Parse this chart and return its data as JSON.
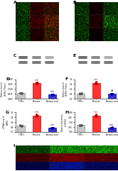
{
  "bg_color": "#ffffff",
  "bar_width": 0.5,
  "panels": {
    "D": {
      "categories": [
        "TDD s",
        "Penzone",
        "Antony zone"
      ],
      "values": [
        1.0,
        2.8,
        0.75
      ],
      "errors": [
        0.08,
        0.12,
        0.07
      ],
      "colors": [
        "#c8c8c8",
        "#ff3333",
        "#3333cc"
      ],
      "edge_colors": [
        "#888888",
        "#cc0000",
        "#0000aa"
      ],
      "ylabel": "Relative Level of\nWDR4 / Protein",
      "sig_labels": [
        "",
        "***",
        "***"
      ],
      "sig_colors": [
        "",
        "#cc0000",
        "#0000aa"
      ],
      "ylim": [
        0,
        3.5
      ]
    },
    "F": {
      "categories": [
        "TDD s",
        "Penzone",
        "Antony zone"
      ],
      "values": [
        0.85,
        2.6,
        0.8
      ],
      "errors": [
        0.09,
        0.14,
        0.08
      ],
      "colors": [
        "#c8c8c8",
        "#ff3333",
        "#3333cc"
      ],
      "edge_colors": [
        "#888888",
        "#cc0000",
        "#0000aa"
      ],
      "ylabel": "Relative Level of\nWDR4 / Protein",
      "sig_labels": [
        "",
        "***",
        "#"
      ],
      "sig_colors": [
        "",
        "#cc0000",
        "#0000aa"
      ],
      "ylim": [
        0,
        3.2
      ]
    },
    "G": {
      "categories": [
        "TDD s",
        "Penzone",
        "Antony zone"
      ],
      "values": [
        1.0,
        2.7,
        0.65
      ],
      "errors": [
        0.09,
        0.11,
        0.07
      ],
      "colors": [
        "#c8c8c8",
        "#ff3333",
        "#3333cc"
      ],
      "edge_colors": [
        "#888888",
        "#cc0000",
        "#0000aa"
      ],
      "ylabel": "mRNA Level of\nWDR4",
      "sig_labels": [
        "",
        "***",
        "***"
      ],
      "sig_colors": [
        "",
        "#cc0000",
        "#0000aa"
      ],
      "ylim": [
        0,
        3.2
      ]
    },
    "H": {
      "categories": [
        "TDD s",
        "Penzone",
        "Antony zone"
      ],
      "values": [
        1.0,
        2.5,
        0.65
      ],
      "errors": [
        0.08,
        0.13,
        0.07
      ],
      "colors": [
        "#c8c8c8",
        "#ff3333",
        "#3333cc"
      ],
      "edge_colors": [
        "#888888",
        "#cc0000",
        "#0000aa"
      ],
      "ylabel": "Relative Expression\nof WDR4",
      "sig_labels": [
        "",
        "***",
        "***"
      ],
      "sig_colors": [
        "",
        "#cc0000",
        "#0000aa"
      ],
      "ylim": [
        0,
        3.0
      ]
    }
  },
  "panel_A": {
    "grid_colors": [
      [
        "#1a5c0a",
        "#550000",
        "#5c3000"
      ],
      [
        "#1a5c0a",
        "#660000",
        "#7a4200"
      ],
      [
        "#1a5c0a",
        "#440000",
        "#664400"
      ]
    ]
  },
  "panel_B": {
    "grid_colors": [
      [
        "#1a5c0a",
        "#330000",
        "#1a5c0a"
      ],
      [
        "#1a5c0a",
        "#440000",
        "#2a7a1a"
      ],
      [
        "#1a5c0a",
        "#220000",
        "#1a5c0a"
      ]
    ]
  },
  "panel_I": {
    "row_colors": [
      [
        "#0a3a05",
        "#1a5c0a",
        "#1a5c0a"
      ],
      [
        "#3a0000",
        "#550000",
        "#440000"
      ],
      [
        "#050a3a",
        "#0a1a5c",
        "#080f44"
      ]
    ]
  },
  "scatter_colors": [
    "#555555",
    "#cc0000",
    "#0000aa"
  ]
}
